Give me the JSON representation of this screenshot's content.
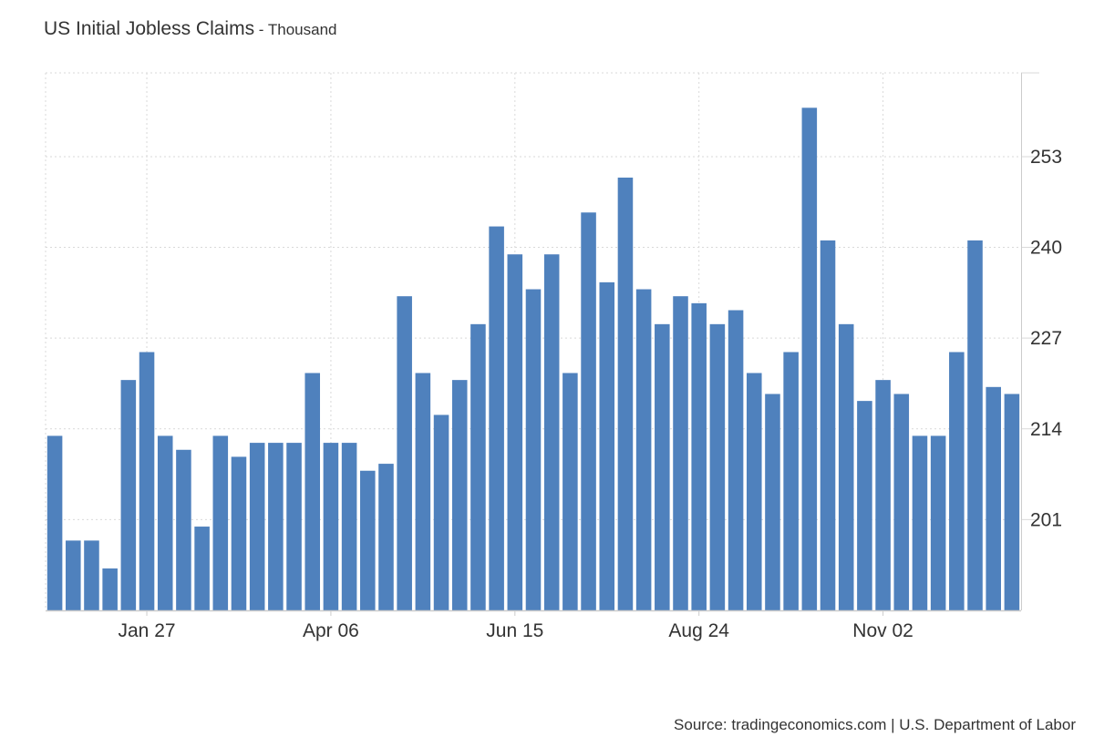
{
  "title": {
    "main": "US Initial Jobless Claims",
    "separator": " - ",
    "unit": "Thousand"
  },
  "source": "Source: tradingeconomics.com | U.S. Department of Labor",
  "colors": {
    "bar": "#4f81bd",
    "grid": "#d9d9d9",
    "axis": "#cccccc",
    "text": "#333333"
  },
  "chart_data": {
    "type": "bar",
    "title": "US Initial Jobless Claims - Thousand",
    "xlabel": "",
    "ylabel": "",
    "ylim": [
      188,
      265
    ],
    "grid": true,
    "y_axis_position": "right",
    "yticks": [
      201,
      214,
      227,
      240,
      253
    ],
    "xticks": [
      {
        "label": "Jan 27",
        "index": 5
      },
      {
        "label": "Apr 06",
        "index": 15
      },
      {
        "label": "Jun 15",
        "index": 25
      },
      {
        "label": "Aug 24",
        "index": 35
      },
      {
        "label": "Nov 02",
        "index": 45
      }
    ],
    "series": [
      {
        "values": [
          213,
          198,
          198,
          194,
          221,
          225,
          213,
          211,
          200,
          213,
          210,
          212,
          212,
          212,
          222,
          212,
          212,
          208,
          209,
          233,
          222,
          216,
          221,
          229,
          243,
          239,
          234,
          239,
          222,
          245,
          235,
          250,
          234,
          229,
          233,
          232,
          229,
          231,
          222,
          219,
          225,
          260,
          241,
          229,
          218,
          221,
          219,
          213,
          213,
          225,
          241,
          220,
          219
        ]
      }
    ]
  }
}
